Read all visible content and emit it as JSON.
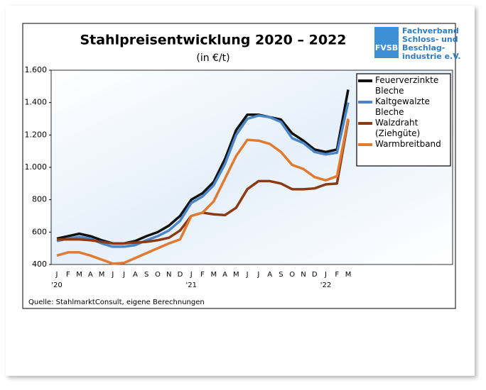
{
  "chart_data": {
    "type": "line",
    "title": "Stahlpreisentwicklung  2020 – 2022",
    "subtitle": "(in €/t)",
    "source": "Quelle: StahlmarktConsult, eigene Berechnungen",
    "logo": {
      "abbr": "FVSB",
      "lines": [
        "Fachverband",
        "Schloss- und",
        "Beschlag-",
        "industrie e.V."
      ]
    },
    "categories": [
      "J",
      "F",
      "M",
      "A",
      "M",
      "J",
      "J",
      "A",
      "S",
      "O",
      "N",
      "D",
      "J",
      "F",
      "M",
      "A",
      "M",
      "J",
      "J",
      "A",
      "S",
      "O",
      "N",
      "D",
      "J",
      "F",
      "M"
    ],
    "category_years": [
      "'20",
      null,
      null,
      null,
      null,
      null,
      null,
      null,
      null,
      null,
      null,
      null,
      "'21",
      null,
      null,
      null,
      null,
      null,
      null,
      null,
      null,
      null,
      null,
      null,
      "'22",
      null,
      null
    ],
    "ylim": [
      400,
      1600
    ],
    "yticks": [
      400,
      600,
      800,
      {
        "value": 1000,
        "label": "1.000"
      },
      {
        "value": 1200,
        "label": "1.200"
      },
      {
        "value": 1400,
        "label": "1.400"
      },
      {
        "value": 1600,
        "label": "1.600"
      }
    ],
    "series": [
      {
        "name": "Feuerverzinkte Bleche",
        "color": "#111111",
        "values": [
          560,
          575,
          590,
          575,
          550,
          530,
          530,
          545,
          575,
          600,
          640,
          700,
          800,
          840,
          910,
          1050,
          1230,
          1325,
          1325,
          1310,
          1295,
          1210,
          1165,
          1110,
          1095,
          1110,
          1480
        ]
      },
      {
        "name": "Kaltgewalzte Bleche",
        "color": "#4a86c8",
        "values": [
          545,
          560,
          570,
          560,
          530,
          510,
          510,
          520,
          550,
          575,
          610,
          670,
          780,
          820,
          890,
          1020,
          1200,
          1300,
          1320,
          1310,
          1280,
          1180,
          1150,
          1095,
          1080,
          1090,
          1400
        ]
      },
      {
        "name": "Walzdraht (Ziehgüte)",
        "color": "#8b3a12",
        "values": [
          555,
          555,
          555,
          550,
          540,
          530,
          530,
          535,
          540,
          550,
          565,
          610,
          700,
          720,
          710,
          705,
          750,
          865,
          915,
          915,
          900,
          865,
          865,
          870,
          895,
          900,
          1290
        ]
      },
      {
        "name": "Warmbreitband",
        "color": "#e07a30",
        "values": [
          455,
          475,
          475,
          455,
          430,
          405,
          410,
          440,
          470,
          500,
          530,
          555,
          700,
          720,
          790,
          930,
          1070,
          1170,
          1165,
          1145,
          1095,
          1015,
          990,
          940,
          920,
          945,
          1300
        ]
      }
    ]
  }
}
